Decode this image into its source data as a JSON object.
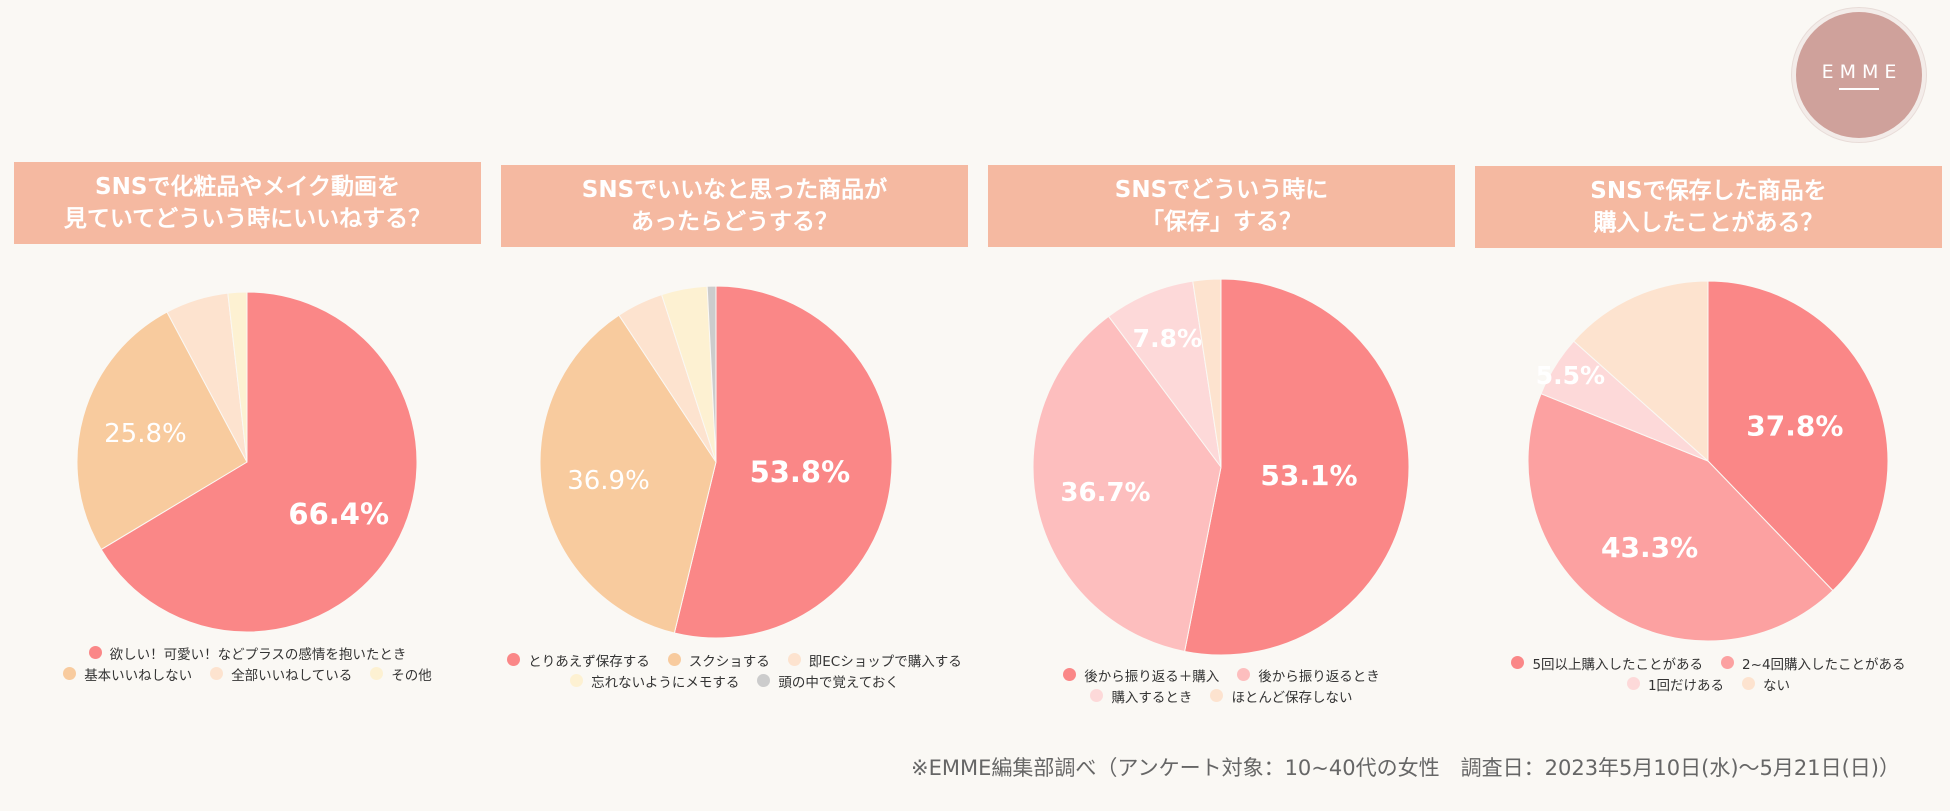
{
  "brand": {
    "logo_text": "EMME"
  },
  "footnote": "※EMME編集部調べ（アンケート対象：10~40代の女性　調査日：2023年5月10日(水)〜5月21日(日)）",
  "chart_data": [
    {
      "type": "pie",
      "title": "SNSで化粧品やメイク動画を\n見ていてどういう時にいいねする？",
      "slices": [
        {
          "label": "欲しい！可愛い！などプラスの感情を抱いたとき",
          "value": 66.4,
          "color": "#fa8787",
          "data_label": "66.4%"
        },
        {
          "label": "基本いいねしない",
          "value": 25.8,
          "color": "#f8cb9e",
          "data_label": "25.8%"
        },
        {
          "label": "全部いいねしている",
          "value": 6.0,
          "color": "#fde3cf",
          "data_label": ""
        },
        {
          "label": "その他",
          "value": 1.8,
          "color": "#fdf1d2",
          "data_label": ""
        }
      ],
      "legend_rows": [
        [
          0
        ],
        [
          1,
          2,
          3
        ]
      ]
    },
    {
      "type": "pie",
      "title": "SNSでいいなと思った商品が\nあったらどうする？",
      "slices": [
        {
          "label": "とりあえず保存する",
          "value": 53.8,
          "color": "#fa8787",
          "data_label": "53.8%"
        },
        {
          "label": "スクショする",
          "value": 36.9,
          "color": "#f8cb9e",
          "data_label": "36.9%"
        },
        {
          "label": "即ECショップで購入する",
          "value": 4.3,
          "color": "#fde3cf",
          "data_label": ""
        },
        {
          "label": "忘れないようにメモする",
          "value": 4.2,
          "color": "#fdf1d2",
          "data_label": ""
        },
        {
          "label": "頭の中で覚えておく",
          "value": 0.8,
          "color": "#cccccc",
          "data_label": ""
        }
      ],
      "legend_rows": [
        [
          0,
          1,
          2
        ],
        [
          3,
          4
        ]
      ]
    },
    {
      "type": "pie",
      "title": "SNSでどういう時に\n「保存」する？",
      "slices": [
        {
          "label": "後から振り返る＋購入",
          "value": 53.1,
          "color": "#fa8787",
          "data_label": "53.1%"
        },
        {
          "label": "後から振り返るとき",
          "value": 36.7,
          "color": "#fdbebe",
          "data_label": "36.7%"
        },
        {
          "label": "購入するとき",
          "value": 7.8,
          "color": "#fdd9d9",
          "data_label": "7.8%"
        },
        {
          "label": "ほとんど保存しない",
          "value": 2.4,
          "color": "#fde3cf",
          "data_label": ""
        }
      ],
      "legend_rows": [
        [
          0,
          1
        ],
        [
          2,
          3
        ]
      ]
    },
    {
      "type": "pie",
      "title": "SNSで保存した商品を\n購入したことがある？",
      "slices": [
        {
          "label": "5回以上購入したことがある",
          "value": 37.8,
          "color": "#fa8787",
          "data_label": "37.8%"
        },
        {
          "label": "2~4回購入したことがある",
          "value": 43.3,
          "color": "#fca1a1",
          "data_label": "43.3%"
        },
        {
          "label": "1回だけある",
          "value": 5.5,
          "color": "#fdd9d9",
          "data_label": "5.5%"
        },
        {
          "label": "ない",
          "value": 13.4,
          "color": "#fde3cf",
          "data_label": ""
        }
      ],
      "legend_rows": [
        [
          0,
          1
        ],
        [
          2,
          3
        ]
      ]
    }
  ]
}
